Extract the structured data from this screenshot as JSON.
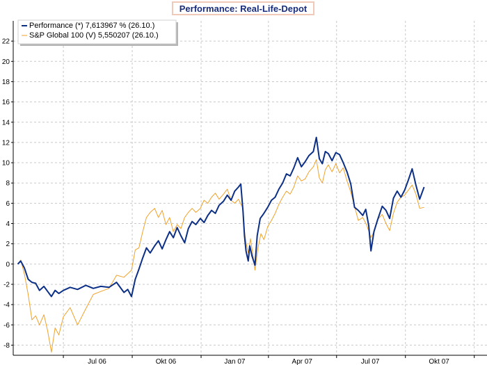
{
  "chart_data": {
    "type": "line",
    "title": "Performance: Real-Life-Depot",
    "xlabel": "",
    "ylabel": "",
    "ylim": [
      -9,
      24
    ],
    "yticks": [
      -8,
      -6,
      -4,
      -2,
      0,
      2,
      4,
      6,
      8,
      10,
      12,
      14,
      16,
      18,
      20,
      22
    ],
    "xtick_labels": [
      "Jul 06",
      "Okt 06",
      "Jan 07",
      "Apr 07",
      "Jul 07",
      "Okt 07"
    ],
    "xtick_dates": [
      "2006-07-01",
      "2006-10-01",
      "2007-01-01",
      "2007-04-01",
      "2007-07-01",
      "2007-10-01",
      "2008-01-01"
    ],
    "xlim": [
      "2006-04-25",
      "2008-01-18"
    ],
    "grid": true,
    "legend_position": "top-left",
    "series": [
      {
        "name": "Performance (*) 7,613967 % (26.10.)",
        "color": "#0c2f86",
        "points": [
          [
            "2006-05-01",
            0
          ],
          [
            "2006-05-05",
            0.3
          ],
          [
            "2006-05-10",
            -0.4
          ],
          [
            "2006-05-15",
            -1.5
          ],
          [
            "2006-05-20",
            -1.8
          ],
          [
            "2006-05-25",
            -1.9
          ],
          [
            "2006-05-30",
            -2.6
          ],
          [
            "2006-06-05",
            -2.2
          ],
          [
            "2006-06-10",
            -2.7
          ],
          [
            "2006-06-15",
            -3.2
          ],
          [
            "2006-06-20",
            -2.6
          ],
          [
            "2006-06-25",
            -2.9
          ],
          [
            "2006-07-01",
            -2.6
          ],
          [
            "2006-07-10",
            -2.3
          ],
          [
            "2006-07-20",
            -2.5
          ],
          [
            "2006-07-31",
            -2.1
          ],
          [
            "2006-08-10",
            -2.4
          ],
          [
            "2006-08-20",
            -2.2
          ],
          [
            "2006-08-31",
            -2.3
          ],
          [
            "2006-09-10",
            -1.8
          ],
          [
            "2006-09-20",
            -2.8
          ],
          [
            "2006-09-25",
            -2.5
          ],
          [
            "2006-09-30",
            -3.2
          ],
          [
            "2006-10-05",
            -1.5
          ],
          [
            "2006-10-10",
            -0.5
          ],
          [
            "2006-10-15",
            0.6
          ],
          [
            "2006-10-20",
            1.6
          ],
          [
            "2006-10-25",
            1.1
          ],
          [
            "2006-10-31",
            1.8
          ],
          [
            "2006-11-05",
            2.3
          ],
          [
            "2006-11-10",
            1.5
          ],
          [
            "2006-11-15",
            2.4
          ],
          [
            "2006-11-20",
            3.2
          ],
          [
            "2006-11-25",
            2.6
          ],
          [
            "2006-11-30",
            3.6
          ],
          [
            "2006-12-05",
            2.8
          ],
          [
            "2006-12-10",
            2.1
          ],
          [
            "2006-12-15",
            3.5
          ],
          [
            "2006-12-20",
            4.2
          ],
          [
            "2006-12-25",
            3.9
          ],
          [
            "2006-12-31",
            4.5
          ],
          [
            "2007-01-05",
            4.1
          ],
          [
            "2007-01-10",
            4.8
          ],
          [
            "2007-01-15",
            5.3
          ],
          [
            "2007-01-20",
            5.0
          ],
          [
            "2007-01-25",
            5.8
          ],
          [
            "2007-01-31",
            6.2
          ],
          [
            "2007-02-05",
            6.8
          ],
          [
            "2007-02-10",
            6.3
          ],
          [
            "2007-02-15",
            7.2
          ],
          [
            "2007-02-20",
            7.6
          ],
          [
            "2007-02-23",
            7.9
          ],
          [
            "2007-02-26",
            5.2
          ],
          [
            "2007-02-28",
            2.8
          ],
          [
            "2007-03-02",
            1.3
          ],
          [
            "2007-03-05",
            0.3
          ],
          [
            "2007-03-07",
            1.8
          ],
          [
            "2007-03-10",
            0.8
          ],
          [
            "2007-03-14",
            -0.1
          ],
          [
            "2007-03-17",
            2.8
          ],
          [
            "2007-03-21",
            4.5
          ],
          [
            "2007-03-25",
            4.9
          ],
          [
            "2007-03-31",
            5.6
          ],
          [
            "2007-04-05",
            6.3
          ],
          [
            "2007-04-10",
            6.6
          ],
          [
            "2007-04-15",
            7.4
          ],
          [
            "2007-04-20",
            8.0
          ],
          [
            "2007-04-25",
            8.9
          ],
          [
            "2007-04-30",
            8.7
          ],
          [
            "2007-05-05",
            9.5
          ],
          [
            "2007-05-10",
            10.5
          ],
          [
            "2007-05-15",
            9.6
          ],
          [
            "2007-05-20",
            10.1
          ],
          [
            "2007-05-25",
            10.7
          ],
          [
            "2007-05-31",
            11.1
          ],
          [
            "2007-06-04",
            12.5
          ],
          [
            "2007-06-08",
            10.4
          ],
          [
            "2007-06-12",
            9.9
          ],
          [
            "2007-06-16",
            11.1
          ],
          [
            "2007-06-20",
            10.9
          ],
          [
            "2007-06-25",
            10.2
          ],
          [
            "2007-06-30",
            11.0
          ],
          [
            "2007-07-05",
            10.8
          ],
          [
            "2007-07-10",
            10.0
          ],
          [
            "2007-07-15",
            9.1
          ],
          [
            "2007-07-20",
            7.9
          ],
          [
            "2007-07-25",
            5.6
          ],
          [
            "2007-07-30",
            5.3
          ],
          [
            "2007-08-05",
            4.8
          ],
          [
            "2007-08-09",
            5.4
          ],
          [
            "2007-08-13",
            3.8
          ],
          [
            "2007-08-16",
            1.3
          ],
          [
            "2007-08-20",
            3.2
          ],
          [
            "2007-08-25",
            4.4
          ],
          [
            "2007-08-31",
            5.7
          ],
          [
            "2007-09-05",
            5.3
          ],
          [
            "2007-09-10",
            4.5
          ],
          [
            "2007-09-15",
            6.5
          ],
          [
            "2007-09-20",
            7.2
          ],
          [
            "2007-09-25",
            6.6
          ],
          [
            "2007-09-30",
            7.3
          ],
          [
            "2007-10-05",
            8.3
          ],
          [
            "2007-10-10",
            9.4
          ],
          [
            "2007-10-15",
            7.8
          ],
          [
            "2007-10-20",
            6.4
          ],
          [
            "2007-10-26",
            7.6
          ]
        ]
      },
      {
        "name": "S&P Global 100 (V) 5,550207 (26.10.)",
        "color": "#f0a22a",
        "points": [
          [
            "2006-05-01",
            0
          ],
          [
            "2006-05-05",
            0.4
          ],
          [
            "2006-05-10",
            -1.0
          ],
          [
            "2006-05-15",
            -3.0
          ],
          [
            "2006-05-20",
            -5.5
          ],
          [
            "2006-05-25",
            -5.1
          ],
          [
            "2006-05-30",
            -6.0
          ],
          [
            "2006-06-05",
            -5.0
          ],
          [
            "2006-06-10",
            -6.6
          ],
          [
            "2006-06-15",
            -8.7
          ],
          [
            "2006-06-20",
            -6.3
          ],
          [
            "2006-06-25",
            -7.0
          ],
          [
            "2006-07-01",
            -5.2
          ],
          [
            "2006-07-10",
            -4.3
          ],
          [
            "2006-07-20",
            -6.0
          ],
          [
            "2006-07-31",
            -4.4
          ],
          [
            "2006-08-10",
            -3.0
          ],
          [
            "2006-08-20",
            -2.7
          ],
          [
            "2006-08-31",
            -2.4
          ],
          [
            "2006-09-10",
            -1.1
          ],
          [
            "2006-09-20",
            -1.3
          ],
          [
            "2006-09-30",
            -0.6
          ],
          [
            "2006-10-05",
            1.4
          ],
          [
            "2006-10-10",
            1.6
          ],
          [
            "2006-10-15",
            3.2
          ],
          [
            "2006-10-20",
            4.6
          ],
          [
            "2006-10-25",
            5.1
          ],
          [
            "2006-10-31",
            5.5
          ],
          [
            "2006-11-05",
            4.6
          ],
          [
            "2006-11-10",
            5.3
          ],
          [
            "2006-11-15",
            3.9
          ],
          [
            "2006-11-20",
            4.6
          ],
          [
            "2006-11-25",
            3.2
          ],
          [
            "2006-11-30",
            3.9
          ],
          [
            "2006-12-05",
            3.5
          ],
          [
            "2006-12-10",
            4.6
          ],
          [
            "2006-12-15",
            5.1
          ],
          [
            "2006-12-20",
            5.5
          ],
          [
            "2006-12-25",
            5.1
          ],
          [
            "2006-12-31",
            5.5
          ],
          [
            "2007-01-05",
            6.3
          ],
          [
            "2007-01-10",
            6.0
          ],
          [
            "2007-01-15",
            6.6
          ],
          [
            "2007-01-20",
            7.0
          ],
          [
            "2007-01-25",
            6.4
          ],
          [
            "2007-01-31",
            6.9
          ],
          [
            "2007-02-05",
            7.4
          ],
          [
            "2007-02-10",
            6.3
          ],
          [
            "2007-02-15",
            6.0
          ],
          [
            "2007-02-20",
            6.4
          ],
          [
            "2007-02-26",
            5.5
          ],
          [
            "2007-02-28",
            3.3
          ],
          [
            "2007-03-02",
            2.1
          ],
          [
            "2007-03-05",
            1.1
          ],
          [
            "2007-03-08",
            2.5
          ],
          [
            "2007-03-11",
            1.0
          ],
          [
            "2007-03-14",
            -0.6
          ],
          [
            "2007-03-18",
            1.6
          ],
          [
            "2007-03-22",
            3.0
          ],
          [
            "2007-03-26",
            2.4
          ],
          [
            "2007-03-31",
            3.7
          ],
          [
            "2007-04-05",
            4.3
          ],
          [
            "2007-04-10",
            5.0
          ],
          [
            "2007-04-15",
            5.9
          ],
          [
            "2007-04-20",
            6.6
          ],
          [
            "2007-04-25",
            7.2
          ],
          [
            "2007-04-30",
            6.9
          ],
          [
            "2007-05-05",
            7.6
          ],
          [
            "2007-05-10",
            8.7
          ],
          [
            "2007-05-15",
            8.2
          ],
          [
            "2007-05-20",
            8.4
          ],
          [
            "2007-05-25",
            9.1
          ],
          [
            "2007-05-31",
            9.6
          ],
          [
            "2007-06-04",
            10.3
          ],
          [
            "2007-06-08",
            8.5
          ],
          [
            "2007-06-12",
            8.0
          ],
          [
            "2007-06-16",
            9.3
          ],
          [
            "2007-06-20",
            9.8
          ],
          [
            "2007-06-25",
            9.1
          ],
          [
            "2007-06-30",
            9.9
          ],
          [
            "2007-07-05",
            9.0
          ],
          [
            "2007-07-10",
            9.5
          ],
          [
            "2007-07-15",
            8.2
          ],
          [
            "2007-07-20",
            7.1
          ],
          [
            "2007-07-25",
            5.7
          ],
          [
            "2007-07-30",
            4.3
          ],
          [
            "2007-08-05",
            4.6
          ],
          [
            "2007-08-10",
            3.9
          ],
          [
            "2007-08-16",
            2.6
          ],
          [
            "2007-08-20",
            3.2
          ],
          [
            "2007-08-25",
            4.4
          ],
          [
            "2007-08-31",
            4.9
          ],
          [
            "2007-09-05",
            4.0
          ],
          [
            "2007-09-10",
            3.3
          ],
          [
            "2007-09-15",
            5.0
          ],
          [
            "2007-09-20",
            6.1
          ],
          [
            "2007-09-25",
            6.6
          ],
          [
            "2007-09-30",
            6.8
          ],
          [
            "2007-10-05",
            7.3
          ],
          [
            "2007-10-10",
            7.8
          ],
          [
            "2007-10-15",
            6.9
          ],
          [
            "2007-10-20",
            5.5
          ],
          [
            "2007-10-26",
            5.6
          ]
        ]
      }
    ]
  }
}
